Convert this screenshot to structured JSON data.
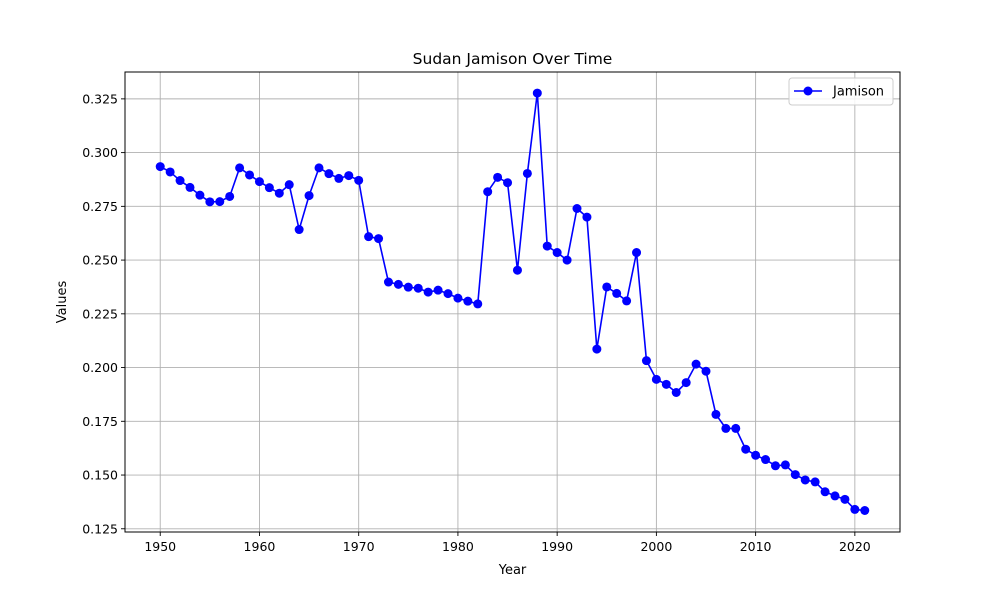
{
  "chart_data": {
    "type": "line",
    "title": "Sudan Jamison Over Time",
    "xlabel": "Year",
    "ylabel": "Values",
    "xlim": [
      1946.45,
      2024.55
    ],
    "ylim": [
      0.1235,
      0.3375
    ],
    "xticks": [
      1950,
      1960,
      1970,
      1980,
      1990,
      2000,
      2010,
      2020
    ],
    "yticks": [
      0.125,
      0.15,
      0.175,
      0.2,
      0.225,
      0.25,
      0.275,
      0.3,
      0.325
    ],
    "xtick_labels": [
      "1950",
      "1960",
      "1970",
      "1980",
      "1990",
      "2000",
      "2010",
      "2020"
    ],
    "ytick_labels": [
      "0.125",
      "0.150",
      "0.175",
      "0.200",
      "0.225",
      "0.250",
      "0.275",
      "0.300",
      "0.325"
    ],
    "grid": true,
    "legend_position": "top-right",
    "series": [
      {
        "name": "Jamison",
        "color": "#0000ff",
        "marker": "circle",
        "x": [
          1950,
          1951,
          1952,
          1953,
          1954,
          1955,
          1956,
          1957,
          1958,
          1959,
          1960,
          1961,
          1962,
          1963,
          1964,
          1965,
          1966,
          1967,
          1968,
          1969,
          1970,
          1971,
          1972,
          1973,
          1974,
          1975,
          1976,
          1977,
          1978,
          1979,
          1980,
          1981,
          1982,
          1983,
          1984,
          1985,
          1986,
          1987,
          1988,
          1989,
          1990,
          1991,
          1992,
          1993,
          1994,
          1995,
          1996,
          1997,
          1998,
          1999,
          2000,
          2001,
          2002,
          2003,
          2004,
          2005,
          2006,
          2007,
          2008,
          2009,
          2010,
          2011,
          2012,
          2013,
          2014,
          2015,
          2016,
          2017,
          2018,
          2019,
          2020,
          2021
        ],
        "values": [
          0.2935,
          0.291,
          0.287,
          0.2838,
          0.2802,
          0.2771,
          0.2772,
          0.2796,
          0.2929,
          0.2896,
          0.2865,
          0.2837,
          0.2811,
          0.2851,
          0.2642,
          0.28,
          0.2929,
          0.2902,
          0.288,
          0.2893,
          0.2871,
          0.2609,
          0.26,
          0.2398,
          0.2387,
          0.2374,
          0.2369,
          0.2351,
          0.236,
          0.2344,
          0.2323,
          0.2309,
          0.2296,
          0.2818,
          0.2885,
          0.286,
          0.2453,
          0.2903,
          0.3277,
          0.2565,
          0.2535,
          0.25,
          0.274,
          0.27,
          0.2086,
          0.2375,
          0.2345,
          0.231,
          0.2535,
          0.2032,
          0.1945,
          0.1922,
          0.1884,
          0.193,
          0.2016,
          0.1983,
          0.1782,
          0.1717,
          0.1717,
          0.162,
          0.1592,
          0.1572,
          0.1543,
          0.1547,
          0.1502,
          0.1477,
          0.1468,
          0.1422,
          0.1403,
          0.1387,
          0.134,
          0.1335
        ]
      }
    ]
  }
}
